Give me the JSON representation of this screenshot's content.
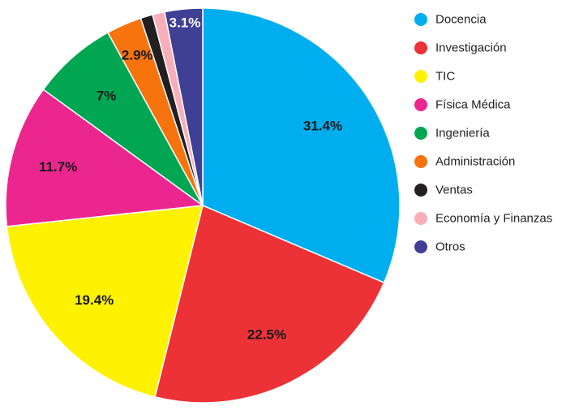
{
  "chart_data": {
    "type": "pie",
    "title": "",
    "legend_position": "right",
    "slices": [
      {
        "name": "Docencia",
        "value": 31.4,
        "label": "31.4%",
        "color": "#00AEEF",
        "label_color": "#1a1a1a"
      },
      {
        "name": "Investigación",
        "value": 22.5,
        "label": "22.5%",
        "color": "#EC3237",
        "label_color": "#1a1a1a"
      },
      {
        "name": "TIC",
        "value": 19.4,
        "label": "19.4%",
        "color": "#FFF200",
        "label_color": "#1a1a1a"
      },
      {
        "name": "Física Médica",
        "value": 11.7,
        "label": "11.7%",
        "color": "#EC268F",
        "label_color": "#1a1a1a"
      },
      {
        "name": "Ingeniería",
        "value": 7.0,
        "label": "7%",
        "color": "#00A651",
        "label_color": "#1a1a1a"
      },
      {
        "name": "Administración",
        "value": 2.9,
        "label": "2.9%",
        "color": "#F7730E",
        "label_color": "#1a1a1a"
      },
      {
        "name": "Ventas",
        "value": 1.0,
        "label": "",
        "color": "#231F20",
        "label_color": "#1a1a1a"
      },
      {
        "name": "Economía y Finanzas",
        "value": 1.0,
        "label": "",
        "color": "#F9AFB9",
        "label_color": "#1a1a1a"
      },
      {
        "name": "Otros",
        "value": 3.1,
        "label": "3.1%",
        "color": "#3F3F94",
        "label_color": "#ffffff"
      }
    ]
  }
}
